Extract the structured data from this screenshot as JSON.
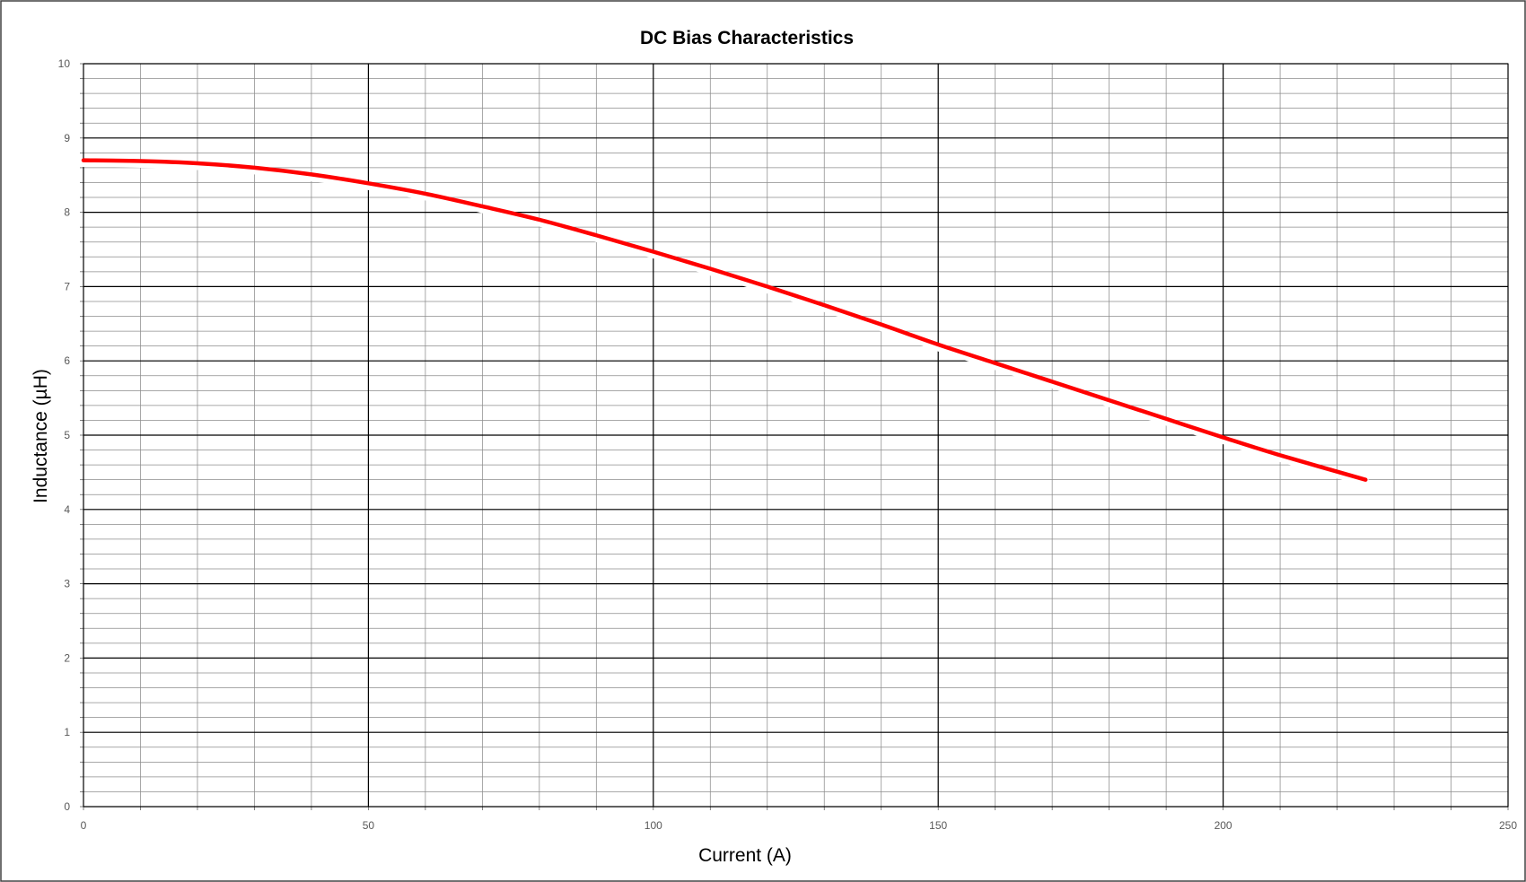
{
  "chart_data": {
    "type": "line",
    "title": "DC Bias Characteristics",
    "xlabel": "Current (A)",
    "ylabel": "Inductance (µH)",
    "xlim": [
      0,
      250
    ],
    "ylim": [
      0,
      10
    ],
    "x_ticks": [
      0,
      50,
      100,
      150,
      200,
      250
    ],
    "y_ticks": [
      0,
      1,
      2,
      3,
      4,
      5,
      6,
      7,
      8,
      9,
      10
    ],
    "x_tick_labels": [
      "0",
      "50",
      "100",
      "150",
      "200",
      "250"
    ],
    "y_tick_labels": [
      "0",
      "1",
      "2",
      "3",
      "4",
      "5",
      "6",
      "7",
      "8",
      "9",
      "10"
    ],
    "grid": true,
    "legend": "none",
    "series": [
      {
        "color": "#ff0000",
        "x": [
          0,
          10,
          20,
          30,
          40,
          50,
          60,
          70,
          80,
          90,
          100,
          110,
          120,
          130,
          140,
          150,
          160,
          170,
          180,
          190,
          200,
          210,
          225
        ],
        "y": [
          8.7,
          8.69,
          8.66,
          8.6,
          8.51,
          8.39,
          8.25,
          8.08,
          7.9,
          7.69,
          7.47,
          7.24,
          7.0,
          6.75,
          6.49,
          6.22,
          5.97,
          5.72,
          5.47,
          5.22,
          4.97,
          4.73,
          4.4
        ]
      }
    ]
  }
}
